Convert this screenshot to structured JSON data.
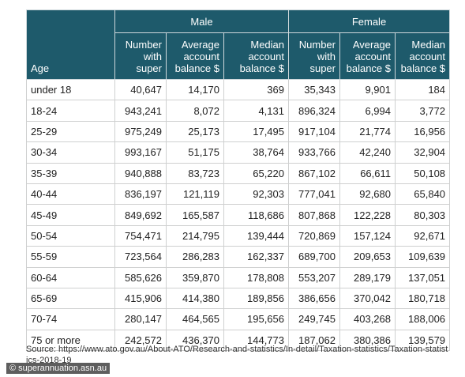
{
  "table": {
    "age_header": "Age",
    "groups": [
      "Male",
      "Female"
    ],
    "columns": [
      "Number with super",
      "Average account balance $",
      "Median account balance $",
      "Number with super",
      "Average account balance $",
      "Median account balance $"
    ],
    "rows": [
      [
        "under 18",
        "40,647",
        "14,170",
        "369",
        "35,343",
        "9,901",
        "184"
      ],
      [
        "18-24",
        "943,241",
        "8,072",
        "4,131",
        "896,324",
        "6,994",
        "3,772"
      ],
      [
        "25-29",
        "975,249",
        "25,173",
        "17,495",
        "917,104",
        "21,774",
        "16,956"
      ],
      [
        "30-34",
        "993,167",
        "51,175",
        "38,764",
        "933,766",
        "42,240",
        "32,904"
      ],
      [
        "35-39",
        "940,888",
        "83,723",
        "65,220",
        "867,102",
        "66,611",
        "50,108"
      ],
      [
        "40-44",
        "836,197",
        "121,119",
        "92,303",
        "777,041",
        "92,680",
        "65,840"
      ],
      [
        "45-49",
        "849,692",
        "165,587",
        "118,686",
        "807,868",
        "122,228",
        "80,303"
      ],
      [
        "50-54",
        "754,471",
        "214,795",
        "139,444",
        "720,869",
        "157,124",
        "92,671"
      ],
      [
        "55-59",
        "723,564",
        "286,283",
        "162,337",
        "689,700",
        "209,653",
        "109,639"
      ],
      [
        "60-64",
        "585,626",
        "359,870",
        "178,808",
        "553,207",
        "289,179",
        "137,051"
      ],
      [
        "65-69",
        "415,906",
        "414,380",
        "189,856",
        "386,656",
        "370,042",
        "180,718"
      ],
      [
        "70-74",
        "280,147",
        "464,565",
        "195,656",
        "249,745",
        "403,268",
        "188,006"
      ],
      [
        "75 or more",
        "242,572",
        "436,370",
        "144,773",
        "187,062",
        "380,386",
        "139,579"
      ]
    ]
  },
  "source": "Source: https://www.ato.gov.au/About-ATO/Research-and-statistics/In-detail/Taxation-statistics/Taxation-statistics-2018-19",
  "watermark": "© superannuation.asn.au"
}
